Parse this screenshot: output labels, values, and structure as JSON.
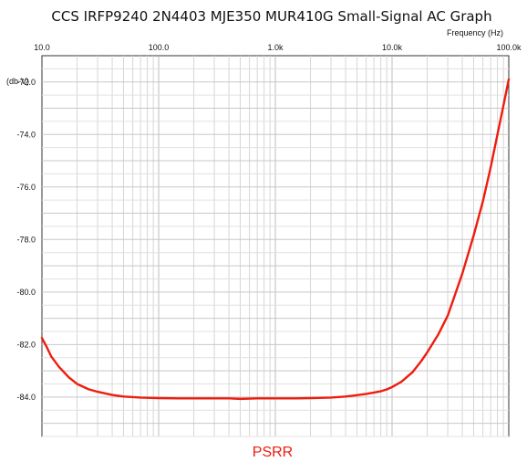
{
  "chart_data": {
    "type": "line",
    "title": "CCS IRFP9240 2N4403 MJE350 MUR410G Small-Signal AC Graph",
    "xlabel": "Frequency   (Hz)",
    "ylabel": "(db-V)",
    "xscale": "log",
    "xlim": [
      10,
      100000
    ],
    "ylim": [
      -85.5,
      -71
    ],
    "grid": true,
    "legend_position": "bottom-center",
    "x_tick_labels": [
      "10.0",
      "100.0",
      "1.0k",
      "10.0k",
      "100.0k"
    ],
    "y_tick_labels": [
      "-72.0",
      "-74.0",
      "-76.0",
      "-78.0",
      "-80.0",
      "-82.0",
      "-84.0"
    ],
    "series": [
      {
        "name": "PSRR",
        "color": "#ee1c0e",
        "x": [
          10,
          11,
          12,
          14,
          17,
          20,
          25,
          30,
          40,
          50,
          70,
          100,
          150,
          200,
          300,
          400,
          500,
          700,
          1000,
          1500,
          2000,
          3000,
          4000,
          5000,
          6000,
          7000,
          8000,
          9000,
          10000,
          12000,
          15000,
          18000,
          20000,
          25000,
          30000,
          40000,
          50000,
          60000,
          70000,
          80000,
          90000,
          100000
        ],
        "y": [
          -81.75,
          -82.1,
          -82.45,
          -82.85,
          -83.25,
          -83.5,
          -83.7,
          -83.8,
          -83.92,
          -83.98,
          -84.02,
          -84.04,
          -84.05,
          -84.05,
          -84.05,
          -84.05,
          -84.07,
          -84.05,
          -84.05,
          -84.05,
          -84.04,
          -84.02,
          -83.98,
          -83.93,
          -83.88,
          -83.83,
          -83.78,
          -83.71,
          -83.62,
          -83.42,
          -83.05,
          -82.6,
          -82.3,
          -81.6,
          -80.9,
          -79.3,
          -77.85,
          -76.55,
          -75.25,
          -74.0,
          -72.9,
          -71.9
        ]
      }
    ]
  }
}
